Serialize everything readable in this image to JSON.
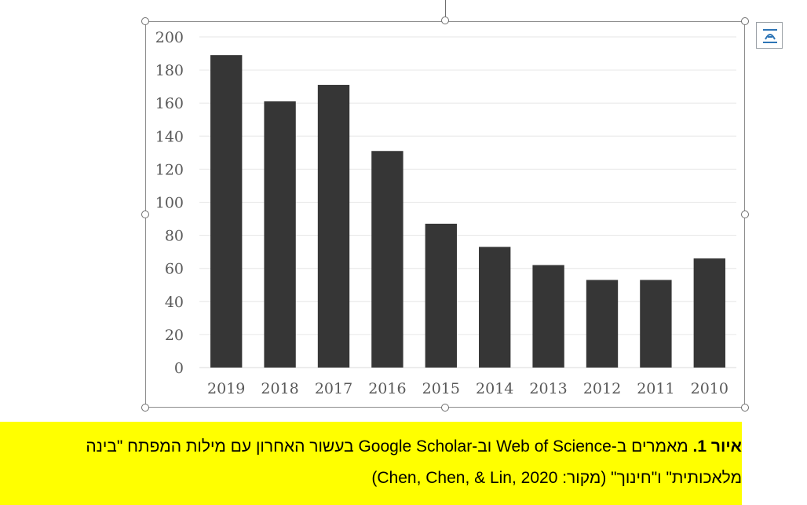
{
  "colors": {
    "bar": "#363636",
    "gridline": "#e6e6e6",
    "axis": "#d9d9d9",
    "tick_text": "#595959",
    "selection_border": "#8c8c8c",
    "caption_highlight": "#ffff00"
  },
  "layout_options_button": {
    "icon": "layout-options-icon"
  },
  "chart_data": {
    "type": "bar",
    "categories": [
      "2019",
      "2018",
      "2017",
      "2016",
      "2015",
      "2014",
      "2013",
      "2012",
      "2011",
      "2010"
    ],
    "values": [
      189,
      161,
      171,
      131,
      87,
      73,
      62,
      53,
      53,
      66
    ],
    "ylim": [
      0,
      200
    ],
    "yticks": [
      0,
      20,
      40,
      60,
      80,
      100,
      120,
      140,
      160,
      180,
      200
    ],
    "grid": true,
    "title": "",
    "xlabel": "",
    "ylabel": ""
  },
  "caption": {
    "label": "איור 1.",
    "line1_rest": " מאמרים ב-Web of Science וב-Google Scholar בעשור האחרון עם מילות המפתח \"בינה",
    "line2": "מלאכותית\" ו\"חינוך\" (מקור: Chen, Chen, & Lin, 2020)"
  }
}
